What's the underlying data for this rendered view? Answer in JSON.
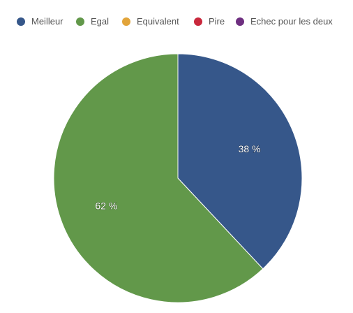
{
  "chart_data": {
    "type": "pie",
    "series": [
      {
        "name": "Meilleur",
        "value": 38,
        "label": "38 %",
        "color": "#36578a"
      },
      {
        "name": "Egal",
        "value": 62,
        "label": "62 %",
        "color": "#62984a"
      },
      {
        "name": "Equivalent",
        "value": 0,
        "label": "",
        "color": "#e2a43a"
      },
      {
        "name": "Pire",
        "value": 0,
        "label": "",
        "color": "#c9283c"
      },
      {
        "name": "Echec pour les deux",
        "value": 0,
        "label": "",
        "color": "#6e2f80"
      }
    ],
    "legend_position": "top",
    "start_angle": "12 o'clock, clockwise"
  }
}
